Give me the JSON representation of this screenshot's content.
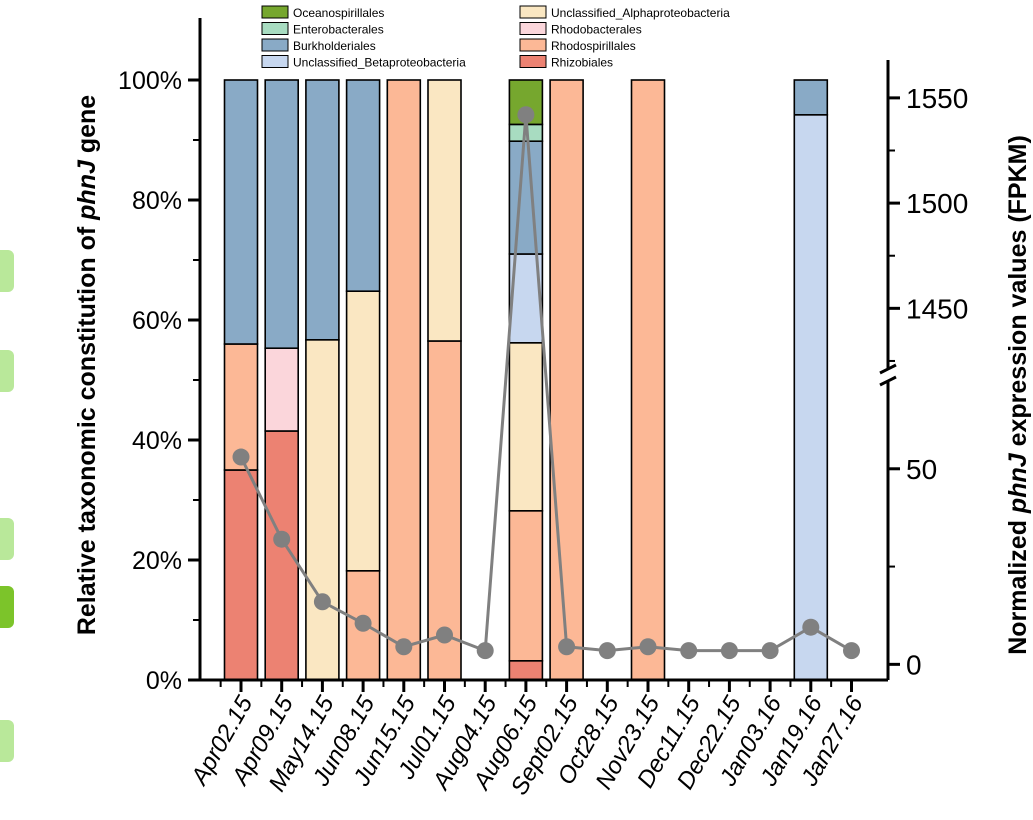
{
  "chart_data": {
    "type": "bar",
    "stacked": true,
    "categories": [
      "Apr02.15",
      "Apr09.15",
      "May14.15",
      "Jun08.15",
      "Jun15.15",
      "Jul01.15",
      "Aug04.15",
      "Aug06.15",
      "Sept02.15",
      "Oct28.15",
      "Nov23.15",
      "Dec11.15",
      "Dec22.15",
      "Jan03.16",
      "Jan19.16",
      "Jan27.16"
    ],
    "ylabel_left_parts": [
      "Relative taxonomic constitution of ",
      "phnJ",
      " gene"
    ],
    "ylabel_right_parts": [
      "Normalized ",
      "phnJ",
      " expression values (FPKM)"
    ],
    "left_axis": {
      "ylim": [
        0,
        100
      ],
      "ticks": [
        0,
        20,
        40,
        60,
        80,
        100
      ],
      "tick_labels": [
        "0%",
        "20%",
        "40%",
        "60%",
        "80%",
        "100%"
      ]
    },
    "right_axis": {
      "broken": true,
      "lower_segment": {
        "range": [
          -4,
          75
        ],
        "ticks": [
          0,
          50
        ],
        "tick_labels": [
          "0",
          "50"
        ]
      },
      "upper_segment": {
        "range": [
          1415,
          1568
        ],
        "ticks": [
          1450,
          1500,
          1550
        ],
        "tick_labels": [
          "1450",
          "1500",
          "1550"
        ]
      }
    },
    "series": [
      {
        "name": "Rhizobiales",
        "color": "#ec8272",
        "values": [
          35,
          41.5,
          0,
          0,
          0,
          0,
          0,
          3.2,
          0,
          0,
          0,
          0,
          0,
          0,
          0,
          0
        ]
      },
      {
        "name": "Rhodospirillales",
        "color": "#fcb896",
        "values": [
          21,
          0,
          0,
          18.2,
          100,
          56.5,
          0,
          25,
          100,
          0,
          100,
          0,
          0,
          0,
          0,
          0
        ]
      },
      {
        "name": "Rhodobacterales",
        "color": "#fbd6db",
        "values": [
          0,
          13.8,
          0,
          0,
          0,
          0,
          0,
          0,
          0,
          0,
          0,
          0,
          0,
          0,
          0,
          0
        ]
      },
      {
        "name": "Unclassified_Alphaproteobacteria",
        "color": "#fae7c2",
        "values": [
          0,
          0,
          56.7,
          46.6,
          0,
          43.5,
          0,
          28,
          0,
          0,
          0,
          0,
          0,
          0,
          0,
          0
        ]
      },
      {
        "name": "Unclassified_Betaproteobacteria",
        "color": "#c7d7ef",
        "values": [
          0,
          0,
          0,
          0,
          0,
          0,
          0,
          14.8,
          0,
          0,
          0,
          0,
          0,
          0,
          94.2,
          0
        ]
      },
      {
        "name": "Burkholderiales",
        "color": "#89aac6",
        "values": [
          44,
          44.7,
          43.3,
          35.2,
          0,
          0,
          0,
          18.8,
          0,
          0,
          0,
          0,
          0,
          0,
          5.8,
          0
        ]
      },
      {
        "name": "Enterobacterales",
        "color": "#a8dcc1",
        "values": [
          0,
          0,
          0,
          0,
          0,
          0,
          0,
          2.8,
          0,
          0,
          0,
          0,
          0,
          0,
          0,
          0
        ]
      },
      {
        "name": "Oceanospirillales",
        "color": "#76a72e",
        "values": [
          0,
          0,
          0,
          0,
          0,
          0,
          0,
          7.4,
          0,
          0,
          0,
          0,
          0,
          0,
          0,
          0
        ]
      }
    ],
    "line_series": {
      "name": "phnJ expression (FPKM)",
      "color": "#808080",
      "values": [
        53,
        32,
        16,
        10.5,
        4.5,
        7.5,
        3.5,
        1542,
        4.5,
        3.5,
        4.5,
        3.5,
        3.5,
        3.5,
        9.5,
        3.5
      ]
    },
    "legend": {
      "placement": "top",
      "column1": [
        "Oceanospirillales",
        "Enterobacterales",
        "Burkholderiales",
        "Unclassified_Betaproteobacteria"
      ],
      "column2": [
        "Unclassified_Alphaproteobacteria",
        "Rhodobacterales",
        "Rhodospirillales",
        "Rhizobiales"
      ]
    },
    "grid": false
  },
  "colors": {
    "axis": "#000000",
    "line": "#808080",
    "side_tab": "#b9e89a",
    "side_tab_active": "#7cc42a"
  }
}
